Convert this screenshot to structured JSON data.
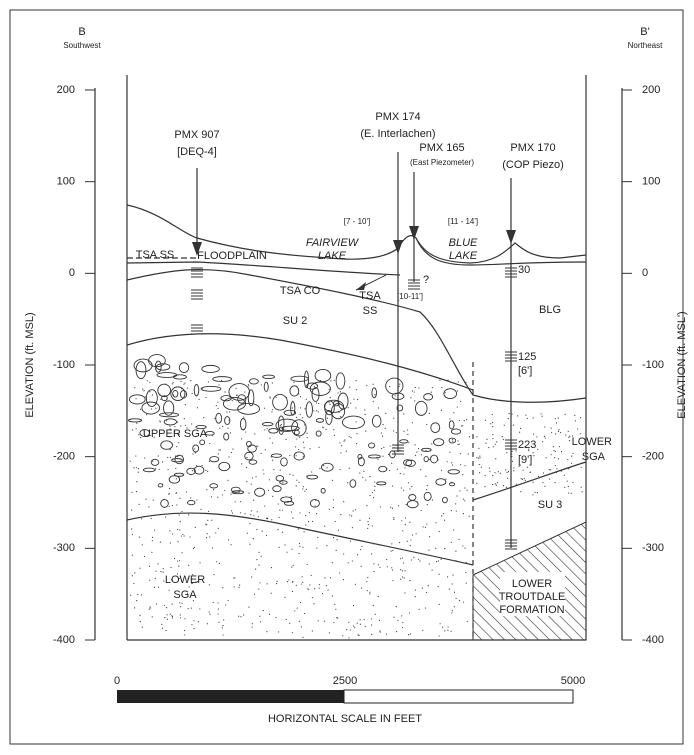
{
  "header": {
    "left_label": "B",
    "left_sub": "Southwest",
    "right_label": "B'",
    "right_sub": "Northeast"
  },
  "axes": {
    "left_title": "ELEVATION (ft. MSL)",
    "right_title": "ELEVATION (ft. MSL')",
    "left_ticks": [
      200,
      100,
      0,
      -100,
      -200,
      -300,
      -400
    ],
    "right_ticks": [
      200,
      100,
      0,
      -100,
      -200,
      -300,
      -400
    ]
  },
  "wells": [
    {
      "name": "PMX 907",
      "note": "[DEQ-4]"
    },
    {
      "name": "PMX 174",
      "note": "(E. Interlachen)"
    },
    {
      "name": "PMX 165",
      "note": "(East Piezometer)"
    },
    {
      "name": "PMX 170",
      "note": "(COP Piezo)"
    }
  ],
  "labels": {
    "tsa_ss_left": "TSA SS",
    "floodplain": "FLOODPLAIN",
    "fairview_1": "FAIRVIEW",
    "fairview_2": "LAKE",
    "fairview_depth": "[7 - 10']",
    "blue_1": "BLUE",
    "blue_2": "LAKE",
    "blue_depth": "[11 - 14']",
    "tsa_co": "TSA CO",
    "tsa_ss_1": "TSA",
    "tsa_ss_2": "SS",
    "question": "?",
    "pmx165_depth": "[10-11']",
    "su2": "SU 2",
    "blg": "BLG",
    "upper_sga": "UPPER SGA",
    "lower_sga_r1": "LOWER",
    "lower_sga_r2": "SGA",
    "su3": "SU 3",
    "lower_sga_l1": "LOWER",
    "lower_sga_l2": "SGA",
    "troutdale_1": "LOWER",
    "troutdale_2": "TROUTDALE",
    "troutdale_3": "FORMATION",
    "well_30": "30",
    "well_125": "125",
    "well_6": "[6']",
    "well_223": "223",
    "well_9": "[9']"
  },
  "scale": {
    "ticks": [
      0,
      2500,
      5000
    ],
    "title": "HORIZONTAL SCALE IN FEET"
  }
}
